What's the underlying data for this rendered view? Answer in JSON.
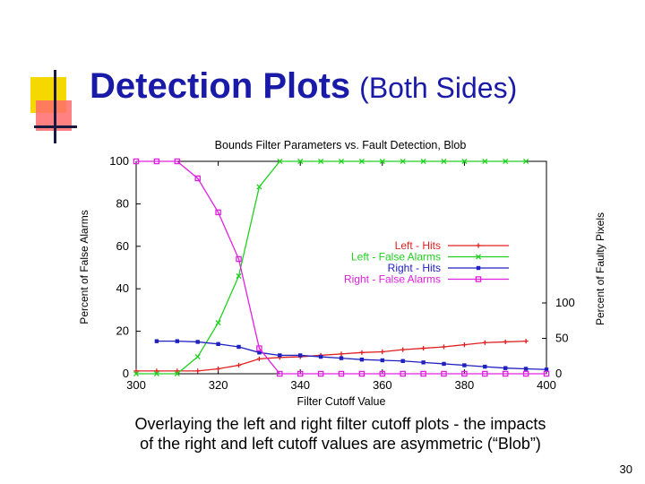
{
  "slide": {
    "title": "Detection Plots",
    "title_sub": "(Both Sides)",
    "caption_line1": "Overlaying the left and right filter cutoff plots - the impacts",
    "caption_line2": "of the right and left cutoff values are asymmetric (“Blob”)",
    "page_number": "30"
  },
  "chart_data": {
    "type": "line",
    "title": "Bounds Filter Parameters vs. Fault Detection, Blob",
    "xlabel": "Filter Cutoff Value",
    "ylabel_left": "Percent of False Alarms",
    "ylabel_right": "Percent of Faulty Pixels",
    "xlim": [
      300,
      400
    ],
    "ylim": [
      0,
      100
    ],
    "x_ticks": [
      300,
      320,
      340,
      360,
      380,
      400
    ],
    "y_ticks_left": [
      0,
      20,
      40,
      60,
      80,
      100
    ],
    "y_ticks_right": [
      0,
      50,
      100
    ],
    "right_axis_range": [
      0,
      100
    ],
    "grid": false,
    "legend_position": "right-center",
    "series": [
      {
        "name": "Left - Hits",
        "color": "#e02020",
        "marker": "plus",
        "axis": "right",
        "x": [
          300,
          305,
          310,
          315,
          320,
          325,
          330,
          335,
          340,
          345,
          350,
          355,
          360,
          365,
          370,
          375,
          380,
          385,
          390,
          395
        ],
        "y": [
          4,
          4,
          4,
          4,
          7,
          12,
          21,
          23,
          24,
          26,
          28,
          30,
          31,
          34,
          36,
          38,
          41,
          44,
          45,
          46
        ]
      },
      {
        "name": "Left - False Alarms",
        "color": "#20d020",
        "marker": "x",
        "axis": "left",
        "x": [
          300,
          305,
          310,
          315,
          320,
          325,
          330,
          335,
          340,
          345,
          350,
          355,
          360,
          365,
          370,
          375,
          380,
          385,
          390,
          395
        ],
        "y": [
          0,
          0,
          0,
          8,
          24,
          46,
          88,
          100,
          100,
          100,
          100,
          100,
          100,
          100,
          100,
          100,
          100,
          100,
          100,
          100
        ]
      },
      {
        "name": "Right - Hits",
        "color": "#2020c0",
        "marker": "square",
        "axis": "right",
        "x": [
          305,
          310,
          315,
          320,
          325,
          330,
          335,
          340,
          345,
          350,
          355,
          360,
          365,
          370,
          375,
          380,
          385,
          390,
          395,
          400
        ],
        "y": [
          46,
          46,
          45,
          42,
          38,
          30,
          26,
          26,
          24,
          22,
          20,
          19,
          18,
          16,
          14,
          12,
          10,
          8,
          7,
          6
        ]
      },
      {
        "name": "Right - False Alarms",
        "color": "#e020e0",
        "marker": "square-open",
        "axis": "left",
        "x": [
          300,
          305,
          310,
          315,
          320,
          325,
          330,
          335,
          340,
          345,
          350,
          355,
          360,
          365,
          370,
          375,
          380,
          385,
          390,
          395,
          400
        ],
        "y": [
          100,
          100,
          100,
          92,
          76,
          54,
          12,
          0,
          0,
          0,
          0,
          0,
          0,
          0,
          0,
          0,
          0,
          0,
          0,
          0,
          0
        ]
      }
    ]
  }
}
